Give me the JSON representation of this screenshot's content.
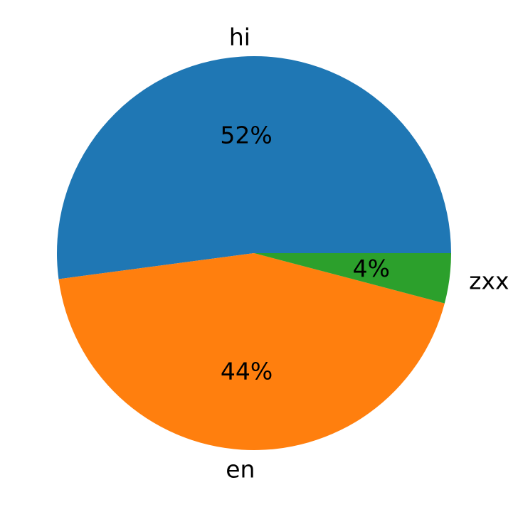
{
  "chart_data": {
    "type": "pie",
    "start_angle_deg": 0,
    "direction": "counterclockwise",
    "slices": [
      {
        "label": "hi",
        "value": 52.1,
        "percent_label": "52%",
        "color": "#1f77b4"
      },
      {
        "label": "en",
        "value": 43.8,
        "percent_label": "44%",
        "color": "#ff7f0e"
      },
      {
        "label": "zxx",
        "value": 4.1,
        "percent_label": "4%",
        "color": "#2ca02c"
      }
    ],
    "legend": "none"
  }
}
